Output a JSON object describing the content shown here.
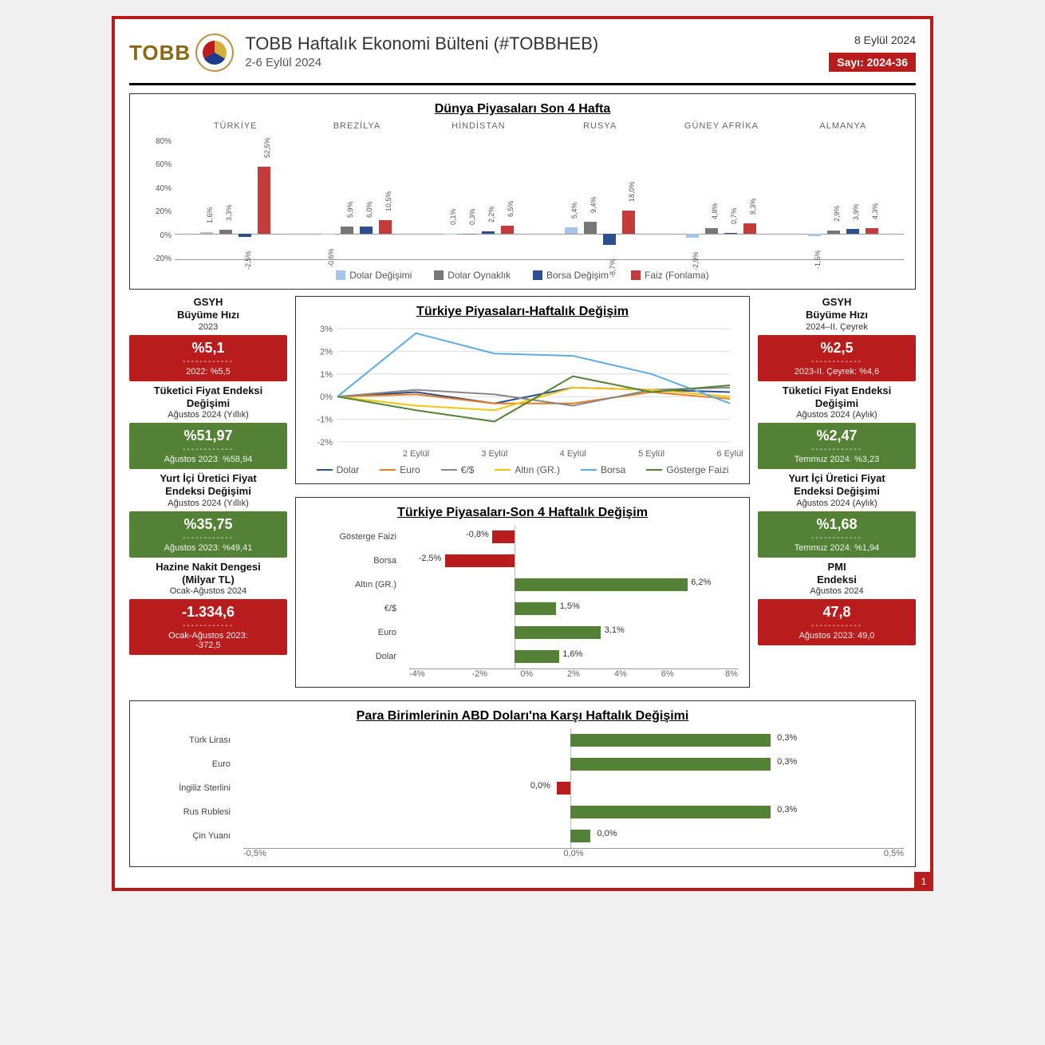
{
  "colors": {
    "red": "#b91c1c",
    "green": "#538135",
    "text": "#333333",
    "border": "#333333",
    "c_dolar_deg": "#a7c5e8",
    "c_dolar_oyn": "#777777",
    "c_borsa": "#2e4e8f",
    "c_faiz": "#c33b3b",
    "line_dolar": "#2e4e8f",
    "line_euro": "#e67e22",
    "line_eurdol": "#888888",
    "line_altin": "#f1c40f",
    "line_borsa": "#5dade2",
    "line_gfaiz": "#538135"
  },
  "header": {
    "logo_text": "TOBB",
    "title": "TOBB Haftalık Ekonomi Bülteni (#TOBBHEB)",
    "subtitle": "2-6 Eylül 2024",
    "date": "8 Eylül 2024",
    "issue": "Sayı: 2024-36"
  },
  "world": {
    "title": "Dünya Piyasaları Son 4 Hafta",
    "ymin": -20,
    "ymax": 80,
    "ystep": 20,
    "series": [
      {
        "name": "Dolar Değişimi",
        "color": "#a7c5e8"
      },
      {
        "name": "Dolar Oynaklık",
        "color": "#777777"
      },
      {
        "name": "Borsa Değişim",
        "color": "#2e4e8f"
      },
      {
        "name": "Faiz (Fonlama)",
        "color": "#c33b3b"
      }
    ],
    "countries": [
      {
        "name": "TÜRKİYE",
        "vals": [
          1.6,
          3.3,
          -2.5,
          52.5
        ]
      },
      {
        "name": "BREZİLYA",
        "vals": [
          -0.6,
          5.9,
          6.0,
          10.5
        ]
      },
      {
        "name": "HİNDİSTAN",
        "vals": [
          0.1,
          0.3,
          2.2,
          6.5
        ]
      },
      {
        "name": "RUSYA",
        "vals": [
          5.4,
          9.4,
          -8.7,
          18.0
        ]
      },
      {
        "name": "GÜNEY AFRİKA",
        "vals": [
          -2.9,
          4.8,
          0.7,
          8.3
        ]
      },
      {
        "name": "ALMANYA",
        "vals": [
          -1.5,
          2.9,
          3.9,
          4.3
        ]
      }
    ]
  },
  "left_stats": [
    {
      "title": "GSYH\nBüyüme Hızı",
      "sub": "2023",
      "main": "%5,1",
      "prev": "2022: %5,5",
      "color": "#b91c1c"
    },
    {
      "title": "Tüketici Fiyat Endeksi\nDeğişimi",
      "sub": "Ağustos 2024 (Yıllık)",
      "main": "%51,97",
      "prev": "Ağustos 2023: %58,94",
      "color": "#538135"
    },
    {
      "title": "Yurt İçi Üretici Fiyat\nEndeksi Değişimi",
      "sub": "Ağustos 2024 (Yıllık)",
      "main": "%35,75",
      "prev": "Ağustos 2023: %49,41",
      "color": "#538135"
    },
    {
      "title": "Hazine Nakit Dengesi\n(Milyar TL)",
      "sub": "Ocak-Ağustos 2024",
      "main": "-1.334,6",
      "prev": "Ocak-Ağustos 2023:\n-372,5",
      "color": "#b91c1c"
    }
  ],
  "right_stats": [
    {
      "title": "GSYH\nBüyüme Hızı",
      "sub": "2024–II. Çeyrek",
      "main": "%2,5",
      "prev": "2023-II. Çeyrek: %4,6",
      "color": "#b91c1c"
    },
    {
      "title": "Tüketici Fiyat Endeksi\nDeğişimi",
      "sub": "Ağustos 2024 (Aylık)",
      "main": "%2,47",
      "prev": "Temmuz 2024: %3,23",
      "color": "#538135"
    },
    {
      "title": "Yurt İçi Üretici Fiyat\nEndeksi Değişimi",
      "sub": "Ağustos 2024 (Aylık)",
      "main": "%1,68",
      "prev": "Temmuz 2024: %1,94",
      "color": "#538135"
    },
    {
      "title": "PMI\nEndeksi",
      "sub": "Ağustos 2024",
      "main": "47,8",
      "prev": "Ağustos 2023: 49,0",
      "color": "#b91c1c"
    }
  ],
  "line_chart": {
    "title": "Türkiye Piyasaları-Haftalık Değişim",
    "x_labels": [
      "2 Eylül",
      "3 Eylül",
      "4 Eylül",
      "5 Eylül",
      "6 Eylül"
    ],
    "ymin": -2,
    "ymax": 3,
    "series": [
      {
        "name": "Dolar",
        "color": "#2e4e8f",
        "pts": [
          0,
          0.2,
          -0.3,
          0.4,
          0.3,
          0.2
        ]
      },
      {
        "name": "Euro",
        "color": "#e67e22",
        "pts": [
          0,
          0.1,
          -0.3,
          -0.3,
          0.2,
          -0.1
        ]
      },
      {
        "name": "€/$",
        "color": "#888888",
        "pts": [
          0,
          0.3,
          0.1,
          -0.4,
          0.3,
          0.4
        ]
      },
      {
        "name": "Altın (GR.)",
        "color": "#f1c40f",
        "pts": [
          0,
          -0.4,
          -0.6,
          0.4,
          0.3,
          0.0
        ]
      },
      {
        "name": "Borsa",
        "color": "#5dade2",
        "pts": [
          0,
          2.8,
          1.9,
          1.8,
          1.0,
          -0.3
        ]
      },
      {
        "name": "Gösterge Faizi",
        "color": "#538135",
        "pts": [
          0,
          -0.6,
          -1.1,
          0.9,
          0.2,
          0.5
        ]
      }
    ]
  },
  "hbar4w": {
    "title": "Türkiye Piyasaları-Son 4 Haftalık Değişim",
    "xmin": -4,
    "xmax": 8,
    "xstep": 2,
    "rows": [
      {
        "label": "Gösterge Faizi",
        "val": -0.8,
        "text": "-0,8%"
      },
      {
        "label": "Borsa",
        "val": -2.5,
        "text": "-2,5%"
      },
      {
        "label": "Altın (GR.)",
        "val": 6.2,
        "text": "6,2%"
      },
      {
        "label": "€/$",
        "val": 1.5,
        "text": "1,5%"
      },
      {
        "label": "Euro",
        "val": 3.1,
        "text": "3,1%"
      },
      {
        "label": "Dolar",
        "val": 1.6,
        "text": "1,6%"
      }
    ]
  },
  "currency": {
    "title": "Para Birimlerinin ABD Doları'na Karşı Haftalık Değişimi",
    "xmin": -0.5,
    "xmax": 0.5,
    "xstep": 0.5,
    "rows": [
      {
        "label": "Türk Lirası",
        "val": 0.3,
        "text": "0,3%"
      },
      {
        "label": "Euro",
        "val": 0.3,
        "text": "0,3%"
      },
      {
        "label": "İngiliz Sterlini",
        "val": -0.02,
        "text": "0,0%"
      },
      {
        "label": "Rus Rublesi",
        "val": 0.3,
        "text": "0,3%"
      },
      {
        "label": "Çin Yuanı",
        "val": 0.03,
        "text": "0,0%"
      }
    ]
  },
  "page_num": "1"
}
